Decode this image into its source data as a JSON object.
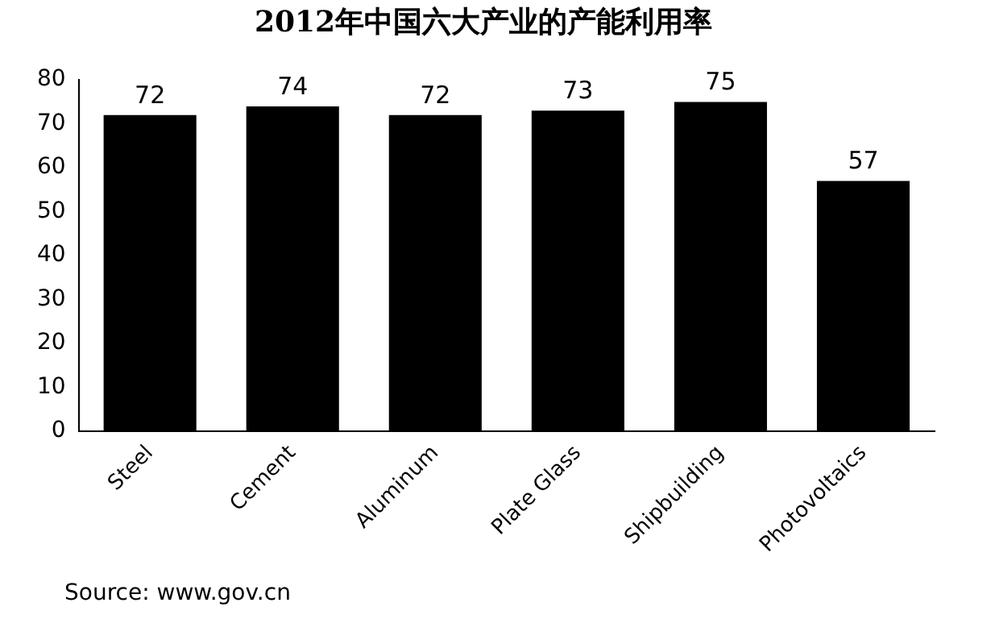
{
  "chart_data": {
    "type": "bar",
    "title": "2012年中国六大产业的产能利用率",
    "categories": [
      "Steel",
      "Cement",
      "Aluminum",
      "Plate Glass",
      "Shipbuilding",
      "Photovoltaics"
    ],
    "values": [
      72,
      74,
      72,
      73,
      75,
      57
    ],
    "color": "#000000",
    "ylim": [
      0,
      80
    ],
    "yticks": [
      0,
      10,
      20,
      30,
      40,
      50,
      60,
      70,
      80
    ],
    "grid": false,
    "data_labels": true,
    "annotations": [
      "Source: www.gov.cn"
    ]
  }
}
